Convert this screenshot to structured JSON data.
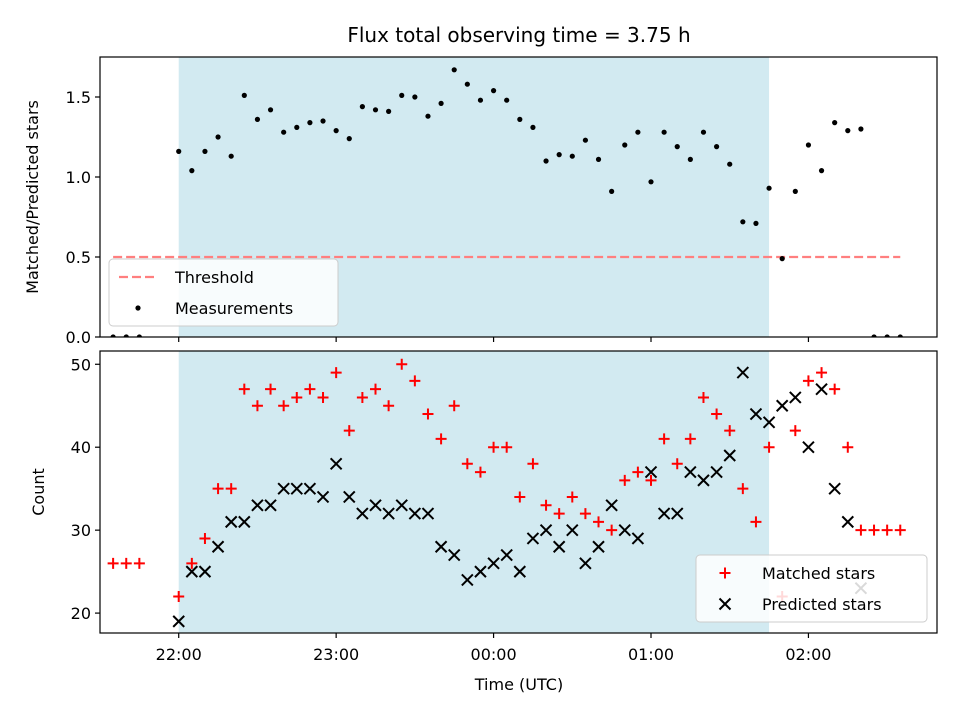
{
  "chart_data": [
    {
      "type": "scatter",
      "title": "Flux total observing time = 3.75 h",
      "xlabel": "",
      "ylabel": "Matched/Predicted stars",
      "ylim": [
        0,
        1.75
      ],
      "yticks": [
        0.0,
        0.5,
        1.0,
        1.5
      ],
      "xticks": [
        "22:00",
        "23:00",
        "00:00",
        "01:00",
        "02:00"
      ],
      "show_xtick_labels": false,
      "shaded_span": {
        "start": "22:00",
        "end": "01:45",
        "color": "#add8e6"
      },
      "threshold": {
        "name": "Threshold",
        "value": 0.5,
        "x_start": "21:35",
        "x_end": "02:35",
        "color": "#ff7f7f"
      },
      "legend": {
        "placement": "lower-left",
        "entries": [
          "Threshold",
          "Measurements"
        ]
      },
      "series": [
        {
          "name": "Measurements",
          "color": "#000000",
          "points": [
            [
              "21:35",
              0.0
            ],
            [
              "21:40",
              0.0
            ],
            [
              "21:45",
              0.0
            ],
            [
              "22:00",
              1.16
            ],
            [
              "22:05",
              1.04
            ],
            [
              "22:10",
              1.16
            ],
            [
              "22:15",
              1.25
            ],
            [
              "22:20",
              1.13
            ],
            [
              "22:25",
              1.51
            ],
            [
              "22:30",
              1.36
            ],
            [
              "22:35",
              1.42
            ],
            [
              "22:40",
              1.28
            ],
            [
              "22:45",
              1.31
            ],
            [
              "22:50",
              1.34
            ],
            [
              "22:55",
              1.35
            ],
            [
              "23:00",
              1.29
            ],
            [
              "23:05",
              1.24
            ],
            [
              "23:10",
              1.44
            ],
            [
              "23:15",
              1.42
            ],
            [
              "23:20",
              1.41
            ],
            [
              "23:25",
              1.51
            ],
            [
              "23:30",
              1.5
            ],
            [
              "23:35",
              1.38
            ],
            [
              "23:40",
              1.46
            ],
            [
              "23:45",
              1.67
            ],
            [
              "23:50",
              1.58
            ],
            [
              "23:55",
              1.48
            ],
            [
              "00:00",
              1.54
            ],
            [
              "00:05",
              1.48
            ],
            [
              "00:10",
              1.36
            ],
            [
              "00:15",
              1.31
            ],
            [
              "00:20",
              1.1
            ],
            [
              "00:25",
              1.14
            ],
            [
              "00:30",
              1.13
            ],
            [
              "00:35",
              1.23
            ],
            [
              "00:40",
              1.11
            ],
            [
              "00:45",
              0.91
            ],
            [
              "00:50",
              1.2
            ],
            [
              "00:55",
              1.28
            ],
            [
              "01:00",
              0.97
            ],
            [
              "01:05",
              1.28
            ],
            [
              "01:10",
              1.19
            ],
            [
              "01:15",
              1.11
            ],
            [
              "01:20",
              1.28
            ],
            [
              "01:25",
              1.19
            ],
            [
              "01:30",
              1.08
            ],
            [
              "01:35",
              0.72
            ],
            [
              "01:40",
              0.71
            ],
            [
              "01:45",
              0.93
            ],
            [
              "01:50",
              0.49
            ],
            [
              "01:55",
              0.91
            ],
            [
              "02:00",
              1.2
            ],
            [
              "02:05",
              1.04
            ],
            [
              "02:10",
              1.34
            ],
            [
              "02:15",
              1.29
            ],
            [
              "02:20",
              1.3
            ],
            [
              "02:25",
              0.0
            ],
            [
              "02:30",
              0.0
            ],
            [
              "02:35",
              0.0
            ]
          ]
        }
      ]
    },
    {
      "type": "scatter",
      "title": "",
      "xlabel": "Time (UTC)",
      "ylabel": "Count",
      "ylim": [
        17.6,
        51.6
      ],
      "yticks": [
        20,
        30,
        40,
        50
      ],
      "xticks": [
        "22:00",
        "23:00",
        "00:00",
        "01:00",
        "02:00"
      ],
      "shaded_span": {
        "start": "22:00",
        "end": "01:45",
        "color": "#add8e6"
      },
      "legend": {
        "placement": "lower-right",
        "entries": [
          "Matched stars",
          "Predicted stars"
        ]
      },
      "series": [
        {
          "name": "Matched stars",
          "marker": "plus",
          "color": "#ff0000",
          "points": [
            [
              "21:35",
              26
            ],
            [
              "21:40",
              26
            ],
            [
              "21:45",
              26
            ],
            [
              "22:00",
              22
            ],
            [
              "22:05",
              26
            ],
            [
              "22:10",
              29
            ],
            [
              "22:15",
              35
            ],
            [
              "22:20",
              35
            ],
            [
              "22:25",
              47
            ],
            [
              "22:30",
              45
            ],
            [
              "22:35",
              47
            ],
            [
              "22:40",
              45
            ],
            [
              "22:45",
              46
            ],
            [
              "22:50",
              47
            ],
            [
              "22:55",
              46
            ],
            [
              "23:00",
              49
            ],
            [
              "23:05",
              42
            ],
            [
              "23:10",
              46
            ],
            [
              "23:15",
              47
            ],
            [
              "23:20",
              45
            ],
            [
              "23:25",
              50
            ],
            [
              "23:30",
              48
            ],
            [
              "23:35",
              44
            ],
            [
              "23:40",
              41
            ],
            [
              "23:45",
              45
            ],
            [
              "23:50",
              38
            ],
            [
              "23:55",
              37
            ],
            [
              "00:00",
              40
            ],
            [
              "00:05",
              40
            ],
            [
              "00:10",
              34
            ],
            [
              "00:15",
              38
            ],
            [
              "00:20",
              33
            ],
            [
              "00:25",
              32
            ],
            [
              "00:30",
              34
            ],
            [
              "00:35",
              32
            ],
            [
              "00:40",
              31
            ],
            [
              "00:45",
              30
            ],
            [
              "00:50",
              36
            ],
            [
              "00:55",
              37
            ],
            [
              "01:00",
              36
            ],
            [
              "01:05",
              41
            ],
            [
              "01:10",
              38
            ],
            [
              "01:15",
              41
            ],
            [
              "01:20",
              46
            ],
            [
              "01:25",
              44
            ],
            [
              "01:30",
              42
            ],
            [
              "01:35",
              35
            ],
            [
              "01:40",
              31
            ],
            [
              "01:45",
              40
            ],
            [
              "01:50",
              22
            ],
            [
              "01:55",
              42
            ],
            [
              "02:00",
              48
            ],
            [
              "02:05",
              49
            ],
            [
              "02:10",
              47
            ],
            [
              "02:15",
              40
            ],
            [
              "02:20",
              30
            ],
            [
              "02:25",
              30
            ],
            [
              "02:30",
              30
            ],
            [
              "02:35",
              30
            ]
          ]
        },
        {
          "name": "Predicted stars",
          "marker": "x",
          "color": "#000000",
          "points": [
            [
              "22:00",
              19
            ],
            [
              "22:05",
              25
            ],
            [
              "22:10",
              25
            ],
            [
              "22:15",
              28
            ],
            [
              "22:20",
              31
            ],
            [
              "22:25",
              31
            ],
            [
              "22:30",
              33
            ],
            [
              "22:35",
              33
            ],
            [
              "22:40",
              35
            ],
            [
              "22:45",
              35
            ],
            [
              "22:50",
              35
            ],
            [
              "22:55",
              34
            ],
            [
              "23:00",
              38
            ],
            [
              "23:05",
              34
            ],
            [
              "23:10",
              32
            ],
            [
              "23:15",
              33
            ],
            [
              "23:20",
              32
            ],
            [
              "23:25",
              33
            ],
            [
              "23:30",
              32
            ],
            [
              "23:35",
              32
            ],
            [
              "23:40",
              28
            ],
            [
              "23:45",
              27
            ],
            [
              "23:50",
              24
            ],
            [
              "23:55",
              25
            ],
            [
              "00:00",
              26
            ],
            [
              "00:05",
              27
            ],
            [
              "00:10",
              25
            ],
            [
              "00:15",
              29
            ],
            [
              "00:20",
              30
            ],
            [
              "00:25",
              28
            ],
            [
              "00:30",
              30
            ],
            [
              "00:35",
              26
            ],
            [
              "00:40",
              28
            ],
            [
              "00:45",
              33
            ],
            [
              "00:50",
              30
            ],
            [
              "00:55",
              29
            ],
            [
              "01:00",
              37
            ],
            [
              "01:05",
              32
            ],
            [
              "01:10",
              32
            ],
            [
              "01:15",
              37
            ],
            [
              "01:20",
              36
            ],
            [
              "01:25",
              37
            ],
            [
              "01:30",
              39
            ],
            [
              "01:35",
              49
            ],
            [
              "01:40",
              44
            ],
            [
              "01:45",
              43
            ],
            [
              "01:50",
              45
            ],
            [
              "01:55",
              46
            ],
            [
              "02:00",
              40
            ],
            [
              "02:05",
              47
            ],
            [
              "02:10",
              35
            ],
            [
              "02:15",
              31
            ],
            [
              "02:20",
              23
            ]
          ]
        }
      ]
    }
  ]
}
